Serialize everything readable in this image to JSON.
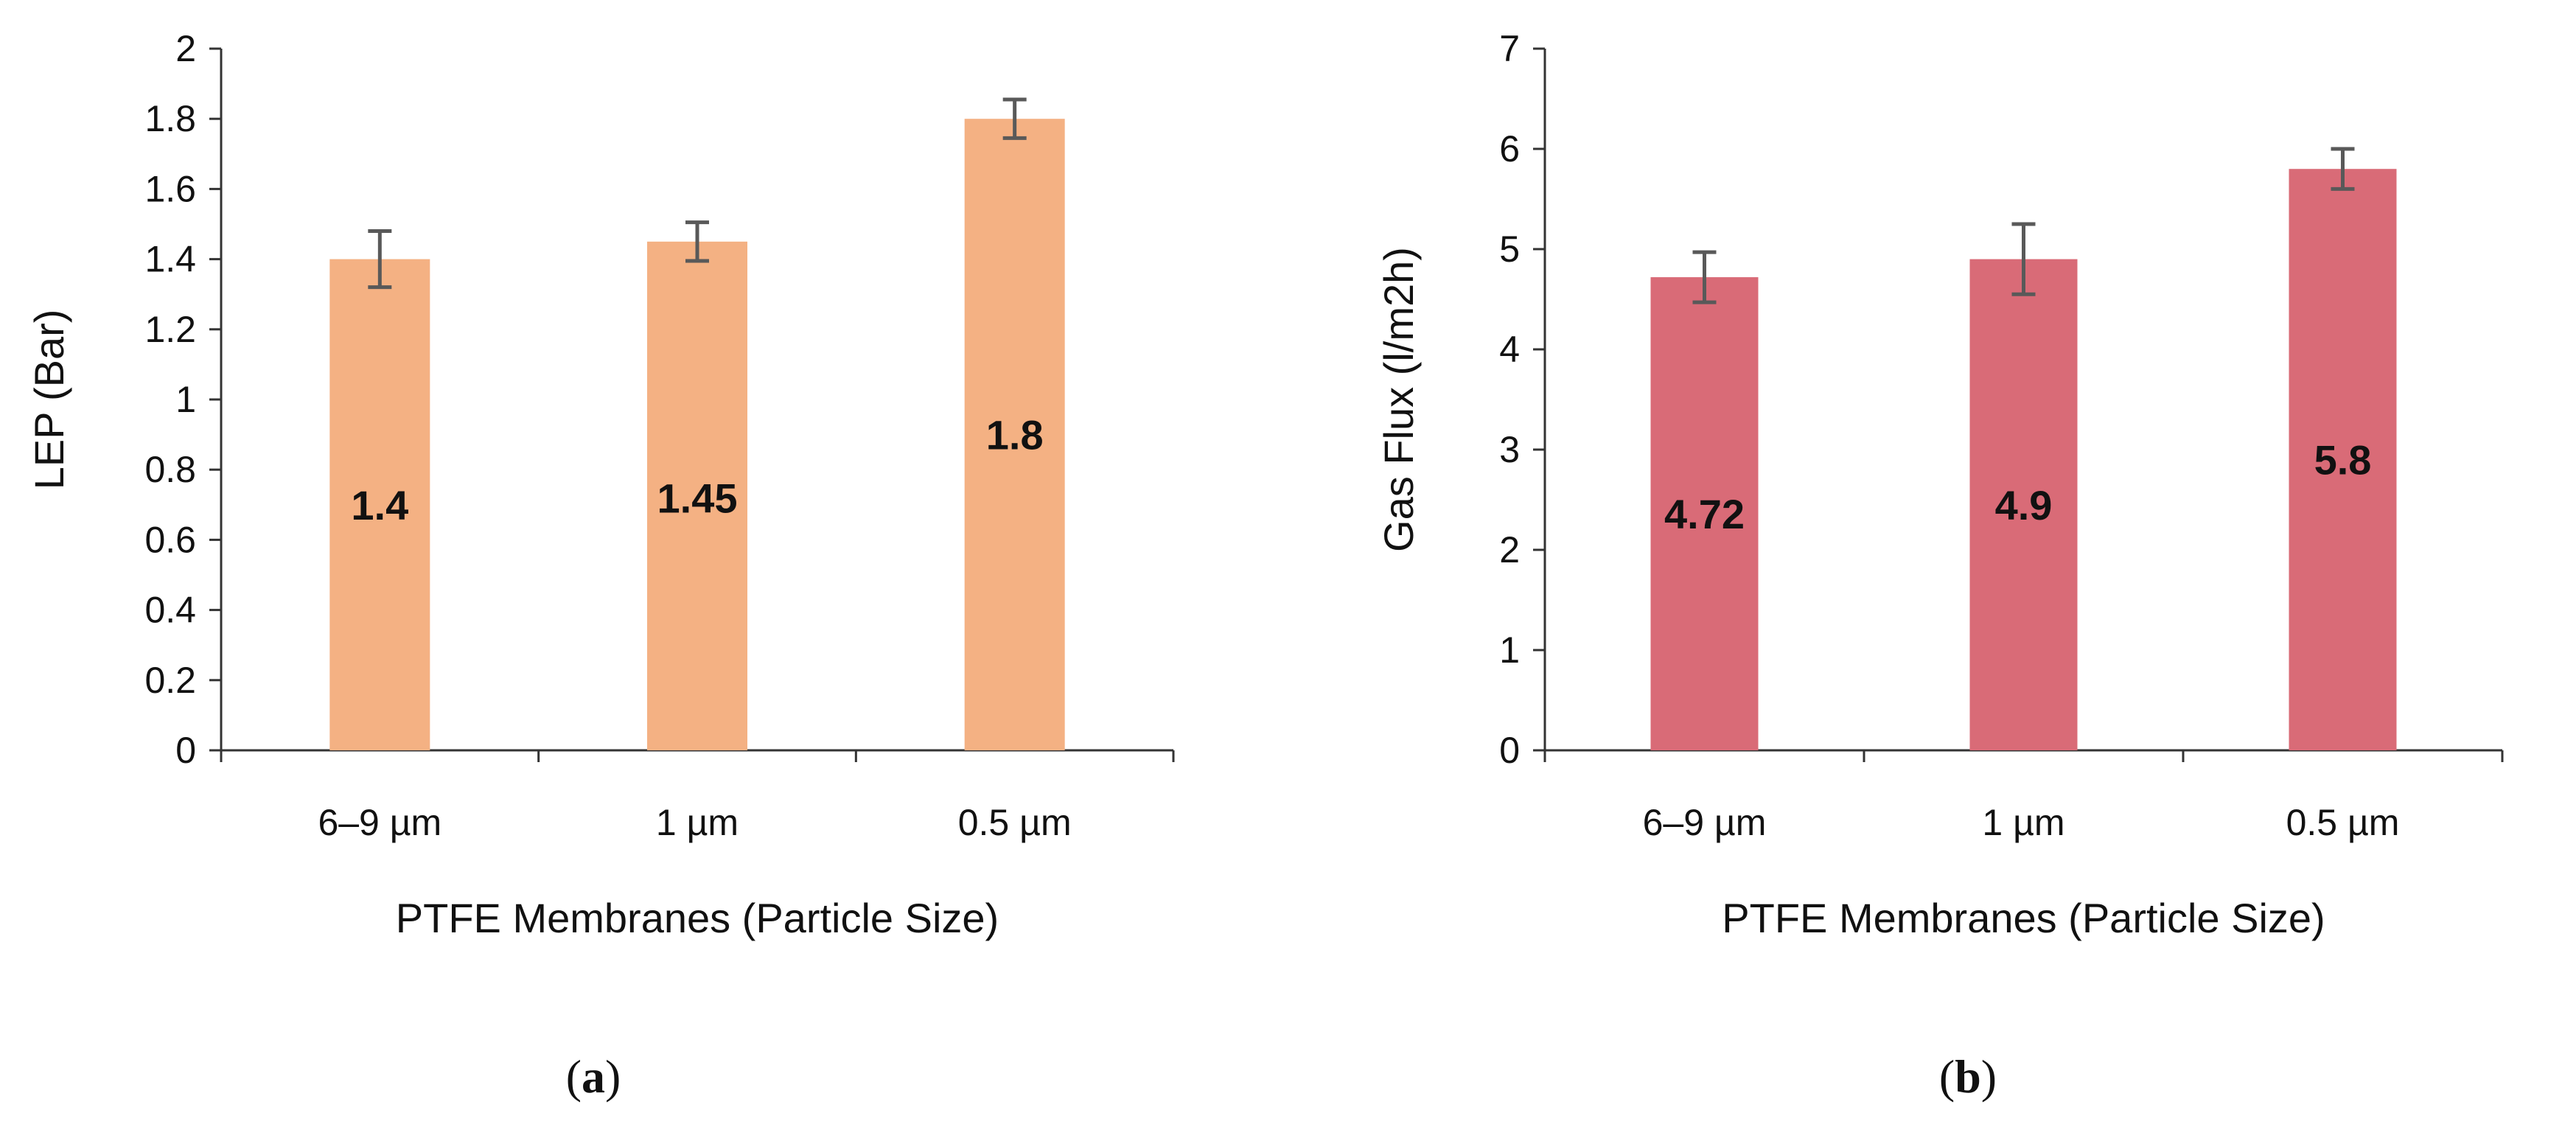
{
  "chart_data": [
    {
      "type": "bar",
      "panel": "a",
      "categories": [
        "6–9 µm",
        "1 µm",
        "0.5 µm"
      ],
      "values": [
        1.4,
        1.45,
        1.8
      ],
      "value_labels": [
        "1.4",
        "1.45",
        "1.8"
      ],
      "errors": [
        0.08,
        0.055,
        0.055
      ],
      "ylabel": "LEP (Bar)",
      "xlabel": "PTFE Membranes (Particle Size)",
      "ylim": [
        0,
        2
      ],
      "yticks": [
        0,
        0.2,
        0.4,
        0.6,
        0.8,
        1,
        1.2,
        1.4,
        1.6,
        1.8,
        2
      ],
      "ytick_labels": [
        "0",
        "0.2",
        "0.4",
        "0.6",
        "0.8",
        "1",
        "1.2",
        "1.4",
        "1.6",
        "1.8",
        "2"
      ],
      "label_anchor": [
        0.7,
        0.72,
        0.9
      ],
      "color": "#F4B183",
      "error_color": "#595959"
    },
    {
      "type": "bar",
      "panel": "b",
      "categories": [
        "6–9 µm",
        "1 µm",
        "0.5 µm"
      ],
      "values": [
        4.72,
        4.9,
        5.8
      ],
      "value_labels": [
        "4.72",
        "4.9",
        "5.8"
      ],
      "errors": [
        0.25,
        0.35,
        0.2
      ],
      "ylabel": "Gas Flux (l/m2h)",
      "xlabel": "PTFE Membranes (Particle Size)",
      "ylim": [
        0,
        7
      ],
      "yticks": [
        0,
        1,
        2,
        3,
        4,
        5,
        6,
        7
      ],
      "ytick_labels": [
        "0",
        "1",
        "2",
        "3",
        "4",
        "5",
        "6",
        "7"
      ],
      "label_anchor": [
        2.36,
        2.45,
        2.9
      ],
      "color": "#D96B77",
      "error_color": "#595959"
    }
  ],
  "panel_labels": [
    {
      "open": "(",
      "letter": "a",
      "close": ")"
    },
    {
      "open": "(",
      "letter": "b",
      "close": ")"
    }
  ]
}
